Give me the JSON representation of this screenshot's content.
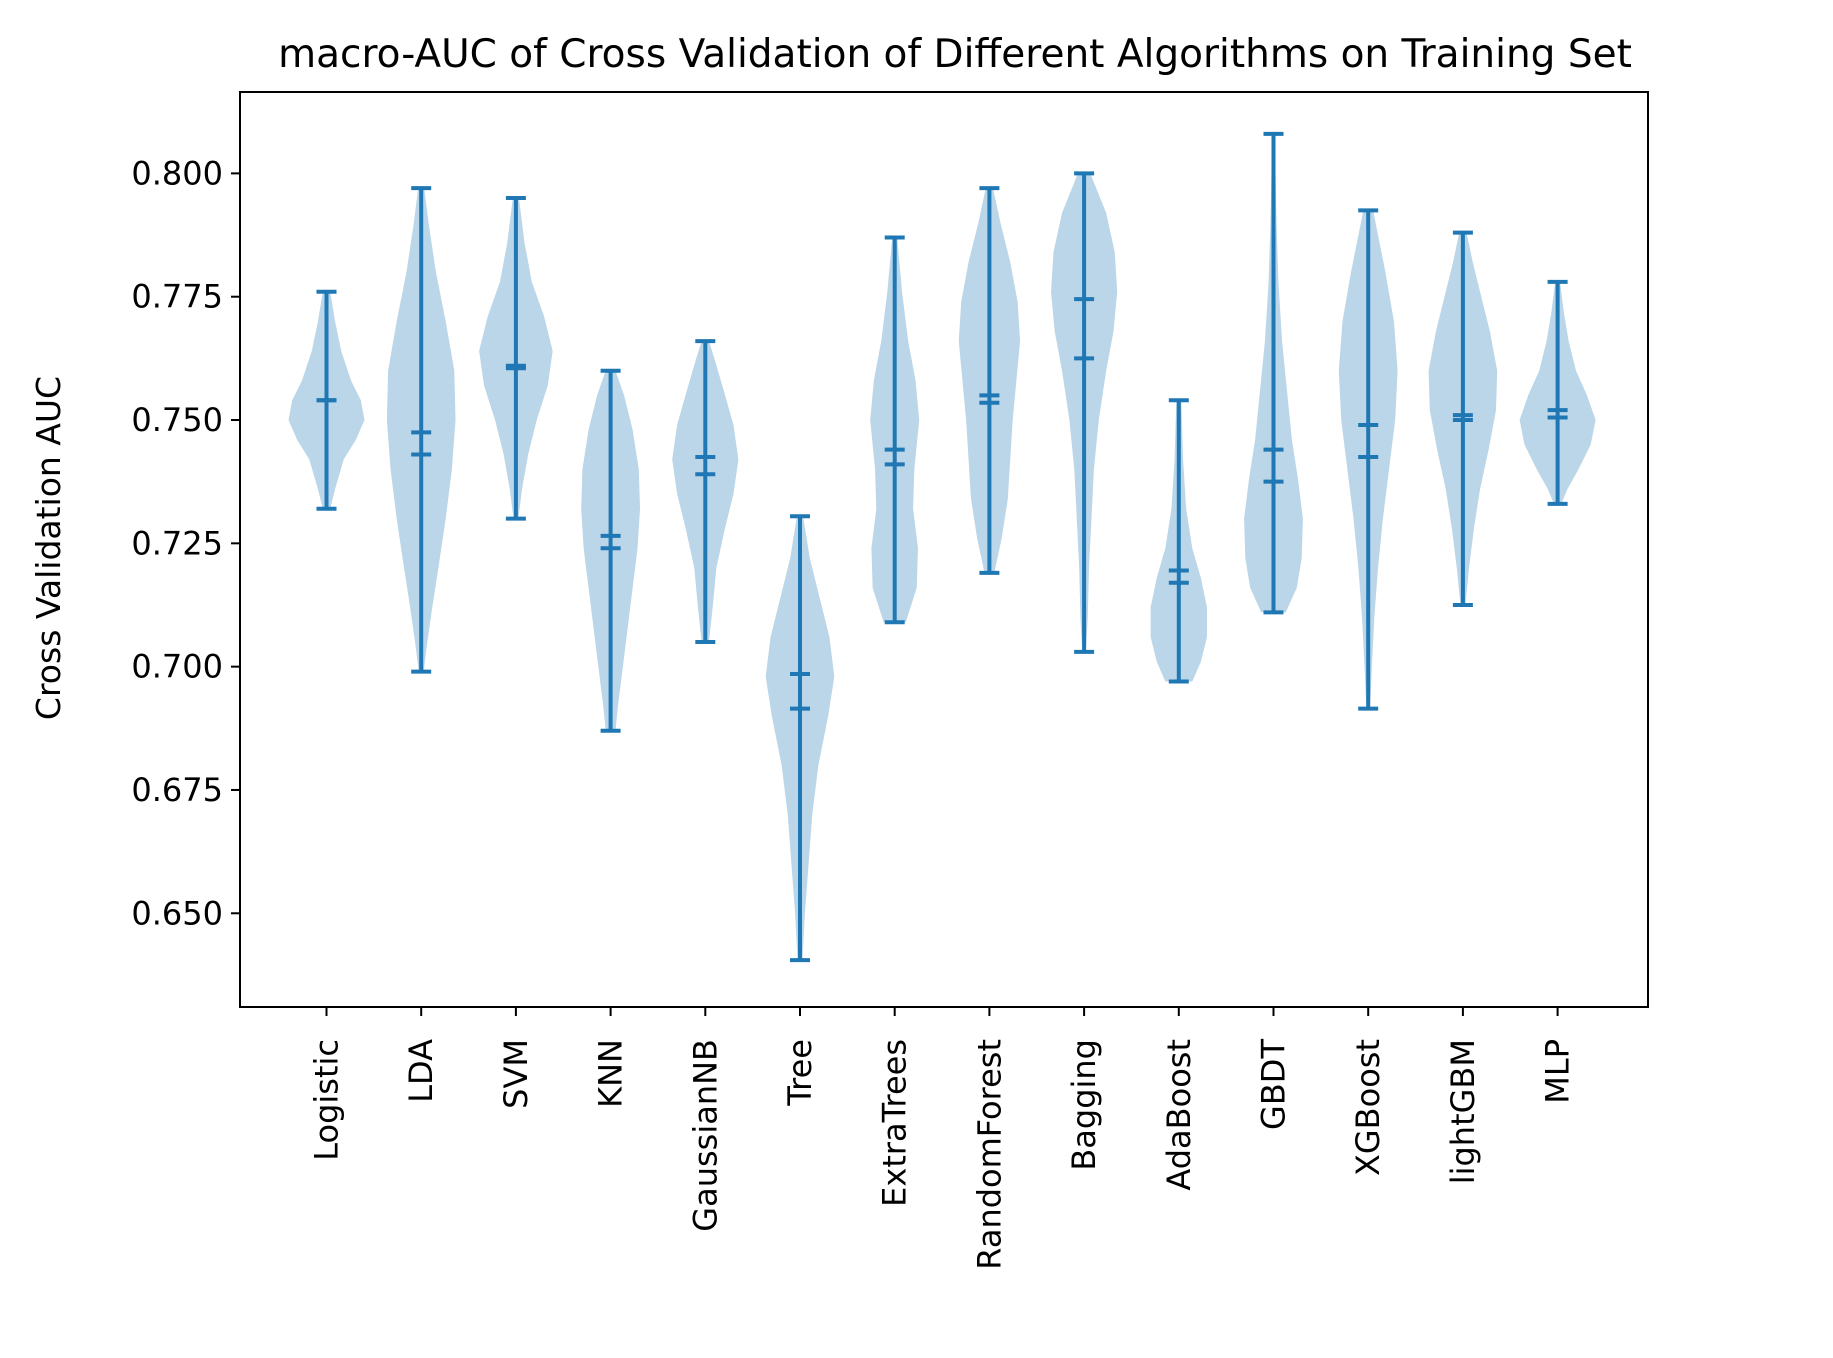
{
  "chart_data": {
    "type": "violin",
    "title": "macro-AUC of Cross Validation of Different Algorithms on Training Set",
    "xlabel": "",
    "ylabel": "Cross Validation AUC",
    "ylim": [
      0.631,
      0.8165
    ],
    "yticks": [
      0.65,
      0.675,
      0.7,
      0.725,
      0.75,
      0.775,
      0.8
    ],
    "ytick_labels": [
      "0.650",
      "0.675",
      "0.700",
      "0.725",
      "0.750",
      "0.775",
      "0.800"
    ],
    "grid": false,
    "color": "#1f77b4",
    "body_alpha": 0.3,
    "categories": [
      "Logistic",
      "LDA",
      "SVM",
      "KNN",
      "GaussianNB",
      "Tree",
      "ExtraTrees",
      "RandomForest",
      "Bagging",
      "AdaBoost",
      "GBDT",
      "XGBoost",
      "lightGBM",
      "MLP"
    ],
    "violins": [
      {
        "name": "Logistic",
        "min": 0.732,
        "max": 0.776,
        "mean": 0.754,
        "median": 0.754,
        "shape": [
          [
            0.732,
            0.06
          ],
          [
            0.736,
            0.14
          ],
          [
            0.742,
            0.28
          ],
          [
            0.746,
            0.48
          ],
          [
            0.75,
            0.62
          ],
          [
            0.754,
            0.56
          ],
          [
            0.758,
            0.4
          ],
          [
            0.764,
            0.24
          ],
          [
            0.77,
            0.14
          ],
          [
            0.776,
            0.06
          ]
        ]
      },
      {
        "name": "LDA",
        "min": 0.699,
        "max": 0.797,
        "mean": 0.7475,
        "median": 0.743,
        "shape": [
          [
            0.699,
            0.04
          ],
          [
            0.705,
            0.1
          ],
          [
            0.712,
            0.18
          ],
          [
            0.72,
            0.28
          ],
          [
            0.73,
            0.4
          ],
          [
            0.74,
            0.5
          ],
          [
            0.75,
            0.56
          ],
          [
            0.76,
            0.54
          ],
          [
            0.77,
            0.4
          ],
          [
            0.78,
            0.24
          ],
          [
            0.79,
            0.12
          ],
          [
            0.797,
            0.05
          ]
        ]
      },
      {
        "name": "SVM",
        "min": 0.73,
        "max": 0.795,
        "mean": 0.761,
        "median": 0.7605,
        "shape": [
          [
            0.73,
            0.04
          ],
          [
            0.736,
            0.1
          ],
          [
            0.743,
            0.2
          ],
          [
            0.75,
            0.34
          ],
          [
            0.757,
            0.52
          ],
          [
            0.764,
            0.6
          ],
          [
            0.771,
            0.46
          ],
          [
            0.778,
            0.26
          ],
          [
            0.786,
            0.14
          ],
          [
            0.795,
            0.05
          ]
        ]
      },
      {
        "name": "KNN",
        "min": 0.687,
        "max": 0.76,
        "mean": 0.7265,
        "median": 0.724,
        "shape": [
          [
            0.687,
            0.08
          ],
          [
            0.692,
            0.12
          ],
          [
            0.7,
            0.2
          ],
          [
            0.708,
            0.28
          ],
          [
            0.716,
            0.36
          ],
          [
            0.724,
            0.44
          ],
          [
            0.732,
            0.48
          ],
          [
            0.74,
            0.46
          ],
          [
            0.748,
            0.36
          ],
          [
            0.755,
            0.22
          ],
          [
            0.76,
            0.08
          ]
        ]
      },
      {
        "name": "GaussianNB",
        "min": 0.705,
        "max": 0.766,
        "mean": 0.7425,
        "median": 0.739,
        "shape": [
          [
            0.705,
            0.06
          ],
          [
            0.712,
            0.12
          ],
          [
            0.72,
            0.18
          ],
          [
            0.728,
            0.32
          ],
          [
            0.735,
            0.46
          ],
          [
            0.742,
            0.54
          ],
          [
            0.749,
            0.46
          ],
          [
            0.756,
            0.3
          ],
          [
            0.762,
            0.16
          ],
          [
            0.766,
            0.06
          ]
        ]
      },
      {
        "name": "Tree",
        "min": 0.6405,
        "max": 0.7305,
        "mean": 0.6985,
        "median": 0.6915,
        "shape": [
          [
            0.6405,
            0.04
          ],
          [
            0.65,
            0.08
          ],
          [
            0.66,
            0.14
          ],
          [
            0.67,
            0.2
          ],
          [
            0.68,
            0.3
          ],
          [
            0.69,
            0.46
          ],
          [
            0.698,
            0.56
          ],
          [
            0.706,
            0.48
          ],
          [
            0.714,
            0.32
          ],
          [
            0.722,
            0.16
          ],
          [
            0.7305,
            0.05
          ]
        ]
      },
      {
        "name": "ExtraTrees",
        "min": 0.709,
        "max": 0.787,
        "mean": 0.744,
        "median": 0.741,
        "shape": [
          [
            0.709,
            0.18
          ],
          [
            0.716,
            0.36
          ],
          [
            0.724,
            0.38
          ],
          [
            0.732,
            0.3
          ],
          [
            0.74,
            0.32
          ],
          [
            0.75,
            0.4
          ],
          [
            0.758,
            0.34
          ],
          [
            0.766,
            0.22
          ],
          [
            0.776,
            0.12
          ],
          [
            0.787,
            0.04
          ]
        ]
      },
      {
        "name": "RandomForest",
        "min": 0.719,
        "max": 0.797,
        "mean": 0.755,
        "median": 0.7535,
        "shape": [
          [
            0.719,
            0.08
          ],
          [
            0.726,
            0.2
          ],
          [
            0.734,
            0.3
          ],
          [
            0.742,
            0.34
          ],
          [
            0.75,
            0.38
          ],
          [
            0.758,
            0.44
          ],
          [
            0.766,
            0.5
          ],
          [
            0.774,
            0.46
          ],
          [
            0.782,
            0.34
          ],
          [
            0.79,
            0.18
          ],
          [
            0.797,
            0.06
          ]
        ]
      },
      {
        "name": "Bagging",
        "min": 0.703,
        "max": 0.8,
        "mean": 0.7745,
        "median": 0.7625,
        "shape": [
          [
            0.703,
            0.03
          ],
          [
            0.71,
            0.06
          ],
          [
            0.72,
            0.08
          ],
          [
            0.73,
            0.12
          ],
          [
            0.74,
            0.16
          ],
          [
            0.75,
            0.24
          ],
          [
            0.76,
            0.36
          ],
          [
            0.768,
            0.48
          ],
          [
            0.776,
            0.54
          ],
          [
            0.784,
            0.5
          ],
          [
            0.792,
            0.36
          ],
          [
            0.8,
            0.1
          ]
        ]
      },
      {
        "name": "AdaBoost",
        "min": 0.697,
        "max": 0.754,
        "mean": 0.7195,
        "median": 0.717,
        "shape": [
          [
            0.697,
            0.22
          ],
          [
            0.701,
            0.36
          ],
          [
            0.706,
            0.46
          ],
          [
            0.712,
            0.46
          ],
          [
            0.718,
            0.36
          ],
          [
            0.724,
            0.22
          ],
          [
            0.732,
            0.12
          ],
          [
            0.742,
            0.07
          ],
          [
            0.754,
            0.04
          ]
        ]
      },
      {
        "name": "GBDT",
        "min": 0.711,
        "max": 0.808,
        "mean": 0.744,
        "median": 0.7375,
        "shape": [
          [
            0.711,
            0.2
          ],
          [
            0.716,
            0.38
          ],
          [
            0.722,
            0.46
          ],
          [
            0.73,
            0.48
          ],
          [
            0.738,
            0.4
          ],
          [
            0.746,
            0.3
          ],
          [
            0.756,
            0.22
          ],
          [
            0.766,
            0.14
          ],
          [
            0.778,
            0.08
          ],
          [
            0.79,
            0.05
          ],
          [
            0.808,
            0.02
          ]
        ]
      },
      {
        "name": "XGBoost",
        "min": 0.6915,
        "max": 0.7925,
        "mean": 0.749,
        "median": 0.7425,
        "shape": [
          [
            0.6915,
            0.03
          ],
          [
            0.7,
            0.06
          ],
          [
            0.71,
            0.1
          ],
          [
            0.72,
            0.16
          ],
          [
            0.73,
            0.24
          ],
          [
            0.74,
            0.34
          ],
          [
            0.75,
            0.44
          ],
          [
            0.76,
            0.48
          ],
          [
            0.77,
            0.42
          ],
          [
            0.78,
            0.28
          ],
          [
            0.7925,
            0.08
          ]
        ]
      },
      {
        "name": "lightGBM",
        "min": 0.7125,
        "max": 0.788,
        "mean": 0.751,
        "median": 0.75,
        "shape": [
          [
            0.7125,
            0.04
          ],
          [
            0.72,
            0.1
          ],
          [
            0.728,
            0.18
          ],
          [
            0.736,
            0.28
          ],
          [
            0.744,
            0.42
          ],
          [
            0.752,
            0.54
          ],
          [
            0.76,
            0.56
          ],
          [
            0.768,
            0.44
          ],
          [
            0.776,
            0.28
          ],
          [
            0.782,
            0.16
          ],
          [
            0.788,
            0.06
          ]
        ]
      },
      {
        "name": "MLP",
        "min": 0.733,
        "max": 0.778,
        "mean": 0.752,
        "median": 0.7505,
        "shape": [
          [
            0.733,
            0.06
          ],
          [
            0.736,
            0.16
          ],
          [
            0.74,
            0.34
          ],
          [
            0.745,
            0.54
          ],
          [
            0.75,
            0.62
          ],
          [
            0.755,
            0.48
          ],
          [
            0.76,
            0.3
          ],
          [
            0.766,
            0.18
          ],
          [
            0.772,
            0.1
          ],
          [
            0.778,
            0.04
          ]
        ]
      }
    ]
  }
}
